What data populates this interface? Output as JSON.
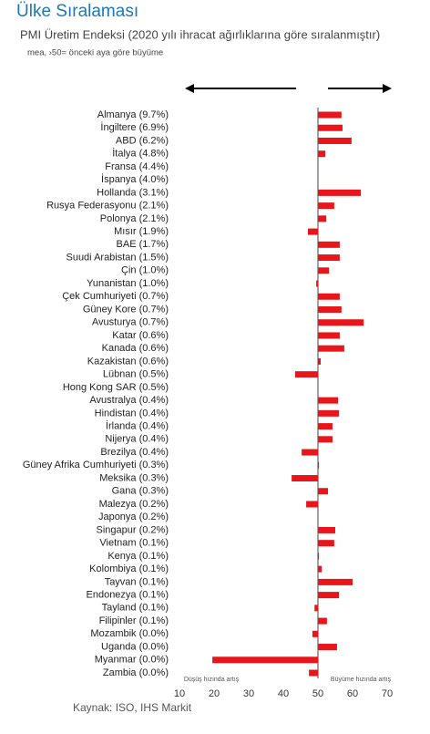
{
  "chart_data": {
    "type": "bar",
    "orientation": "horizontal",
    "title": "Ülke Sıralaması",
    "subtitle": "PMI Üretim Endeksi (2020 yılı ihracat ağırlıklarına göre sıralanmıştır)",
    "note": "mea, ›50= önceki aya göre büyüme",
    "left_label": "Düşüş hızında artış",
    "right_label": "Büyüme hızında artış",
    "source": "Kaynak: ISO, IHS Markit",
    "color": "#e8161b",
    "base": 50,
    "xlim": [
      10,
      70
    ],
    "xticks": [
      10,
      20,
      30,
      40,
      50,
      60,
      70
    ],
    "categories": [
      "Almanya (9.7%)",
      "İngiltere (6.9%)",
      "ABD (6.2%)",
      "İtalya (4.8%)",
      "Fransa (4.4%)",
      "İspanya (4.0%)",
      "Hollanda (3.1%)",
      "Rusya Federasyonu (2.1%)",
      "Polonya (2.1%)",
      "Mısır (1.9%)",
      "BAE (1.7%)",
      "Suudi Arabistan (1.5%)",
      "Çin (1.0%)",
      "Yunanistan (1.0%)",
      "Çek Cumhuriyeti (0.7%)",
      "Güney Kore (0.7%)",
      "Avusturya (0.7%)",
      "Katar (0.6%)",
      "Kanada (0.6%)",
      "Kazakistan (0.6%)",
      "Lübnan (0.5%)",
      "Hong Kong SAR (0.5%)",
      "Avustralya (0.4%)",
      "Hindistan (0.4%)",
      "İrlanda (0.4%)",
      "Nijerya (0.4%)",
      "Brezilya (0.4%)",
      "Güney Afrika Cumhuriyeti (0.3%)",
      "Meksika (0.3%)",
      "Gana (0.3%)",
      "Malezya (0.2%)",
      "Japonya (0.2%)",
      "Singapur (0.2%)",
      "Vietnam (0.1%)",
      "Kenya (0.1%)",
      "Kolombiya (0.1%)",
      "Tayvan (0.1%)",
      "Endonezya (0.1%)",
      "Tayland (0.1%)",
      "Filipinler (0.1%)",
      "Mozambik (0.0%)",
      "Uganda (0.0%)",
      "Myanmar (0.0%)",
      "Zambia (0.0%)"
    ],
    "values": [
      56.8,
      57.1,
      59.7,
      52.1,
      null,
      null,
      62.4,
      54.7,
      52.4,
      47.1,
      56.3,
      56.3,
      53.2,
      49.5,
      56.3,
      56.8,
      63.2,
      56.3,
      57.6,
      50.8,
      43.4,
      null,
      55.8,
      56.1,
      54.2,
      54.2,
      45.3,
      50.3,
      42.4,
      52.9,
      46.6,
      null,
      55.0,
      54.7,
      50.3,
      51.1,
      60.0,
      56.1,
      49.0,
      52.6,
      48.4,
      55.5,
      19.5,
      47.4
    ]
  }
}
